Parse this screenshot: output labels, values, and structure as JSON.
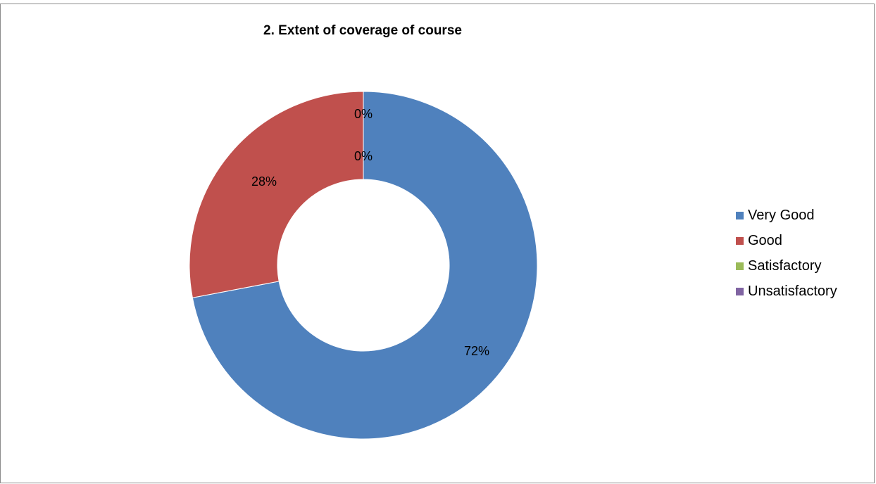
{
  "chart_data": {
    "type": "pie",
    "variant": "doughnut",
    "title": "2. Extent of coverage of course",
    "legend_position": "right",
    "slices": [
      {
        "name": "Very Good",
        "value": 72,
        "label": "72%",
        "color": "#4F81BD"
      },
      {
        "name": "Good",
        "value": 28,
        "label": "28%",
        "color": "#C0504D"
      },
      {
        "name": "Satisfactory",
        "value": 0,
        "label": "0%",
        "color": "#9BBB59"
      },
      {
        "name": "Unsatisfactory",
        "value": 0,
        "label": "0%",
        "color": "#8064A2"
      }
    ]
  }
}
